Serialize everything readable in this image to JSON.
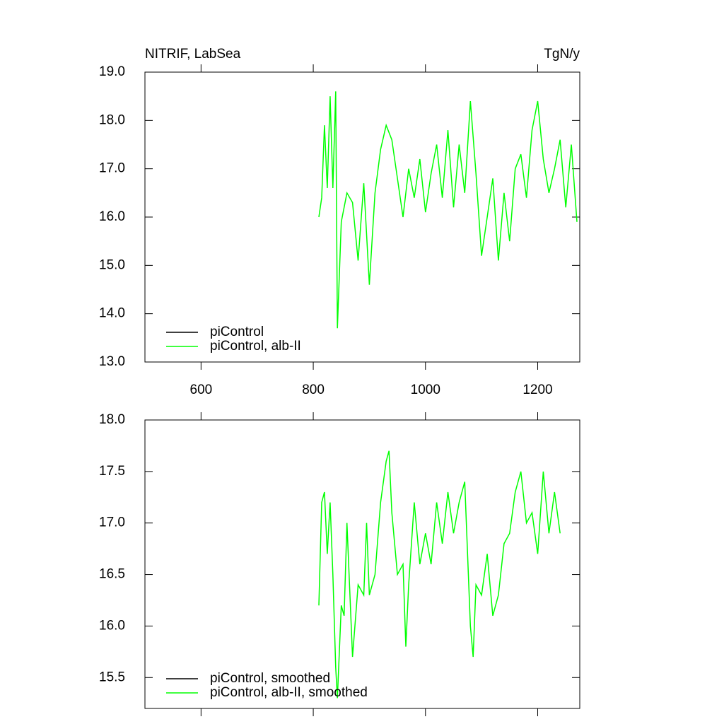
{
  "chart_data": [
    {
      "type": "line",
      "title": "NITRIF, LabSea",
      "units": "TgN/y",
      "xlim": [
        500,
        1275
      ],
      "xticks": [
        600,
        800,
        1000,
        1200
      ],
      "show_xtick_labels": true,
      "ylim": [
        13,
        19
      ],
      "yticks": [
        {
          "value": 13,
          "label": "13.0"
        },
        {
          "value": 14,
          "label": "14.0"
        },
        {
          "value": 15,
          "label": "15.0"
        },
        {
          "value": 16,
          "label": "16.0"
        },
        {
          "value": 17,
          "label": "17.0"
        },
        {
          "value": 18,
          "label": "18.0"
        },
        {
          "value": 19,
          "label": "19.0"
        }
      ],
      "series": [
        {
          "name": "piControl",
          "color": "#000000",
          "x": [],
          "values": []
        },
        {
          "name": "piControl, alb-II",
          "color": "#00ff00",
          "x": [
            810,
            815,
            820,
            825,
            830,
            835,
            840,
            843,
            850,
            860,
            870,
            880,
            890,
            900,
            910,
            920,
            930,
            940,
            950,
            960,
            970,
            980,
            990,
            1000,
            1010,
            1020,
            1030,
            1040,
            1050,
            1060,
            1070,
            1080,
            1090,
            1100,
            1110,
            1120,
            1130,
            1140,
            1150,
            1160,
            1170,
            1180,
            1190,
            1200,
            1210,
            1220,
            1230,
            1240,
            1250,
            1260,
            1270
          ],
          "values": [
            16.0,
            16.4,
            17.9,
            16.6,
            18.5,
            16.6,
            18.6,
            13.7,
            15.9,
            16.5,
            16.3,
            15.1,
            16.7,
            14.6,
            16.5,
            17.4,
            17.9,
            17.6,
            16.8,
            16.0,
            17.0,
            16.4,
            17.2,
            16.1,
            16.9,
            17.5,
            16.4,
            17.8,
            16.2,
            17.5,
            16.5,
            18.4,
            16.9,
            15.2,
            16.0,
            16.8,
            15.1,
            16.5,
            15.5,
            17.0,
            17.3,
            16.4,
            17.8,
            18.4,
            17.2,
            16.5,
            17.0,
            17.6,
            16.2,
            17.5,
            15.9
          ]
        }
      ]
    },
    {
      "type": "line",
      "xlim": [
        500,
        1275
      ],
      "xticks": [
        600,
        800,
        1000,
        1200
      ],
      "show_xtick_labels": false,
      "ylim": [
        15.2,
        18
      ],
      "yticks": [
        15.5,
        {
          "value": 16,
          "label": "16.0"
        },
        16.5,
        {
          "value": 17,
          "label": "17.0"
        },
        17.5,
        {
          "value": 18,
          "label": "18.0"
        }
      ],
      "series": [
        {
          "name": "piControl, smoothed",
          "color": "#000000",
          "x": [],
          "values": []
        },
        {
          "name": "piControl, alb-II, smoothed",
          "color": "#00ff00",
          "x": [
            810,
            815,
            820,
            825,
            830,
            835,
            840,
            843,
            850,
            855,
            860,
            870,
            880,
            890,
            895,
            900,
            910,
            920,
            930,
            935,
            940,
            950,
            960,
            965,
            970,
            980,
            990,
            1000,
            1010,
            1020,
            1030,
            1040,
            1050,
            1060,
            1070,
            1080,
            1085,
            1090,
            1100,
            1110,
            1120,
            1130,
            1140,
            1150,
            1160,
            1170,
            1180,
            1190,
            1200,
            1210,
            1220,
            1230,
            1240
          ],
          "values": [
            16.2,
            17.2,
            17.3,
            16.7,
            17.2,
            16.5,
            15.6,
            15.3,
            16.2,
            16.1,
            17.0,
            15.7,
            16.4,
            16.3,
            17.0,
            16.3,
            16.5,
            17.2,
            17.6,
            17.7,
            17.1,
            16.5,
            16.6,
            15.8,
            16.4,
            17.2,
            16.6,
            16.9,
            16.6,
            17.2,
            16.8,
            17.3,
            16.9,
            17.2,
            17.4,
            16.0,
            15.7,
            16.4,
            16.3,
            16.7,
            16.1,
            16.3,
            16.8,
            16.9,
            17.3,
            17.5,
            17.0,
            17.1,
            16.7,
            17.5,
            16.9,
            17.3,
            16.9
          ]
        }
      ]
    }
  ]
}
